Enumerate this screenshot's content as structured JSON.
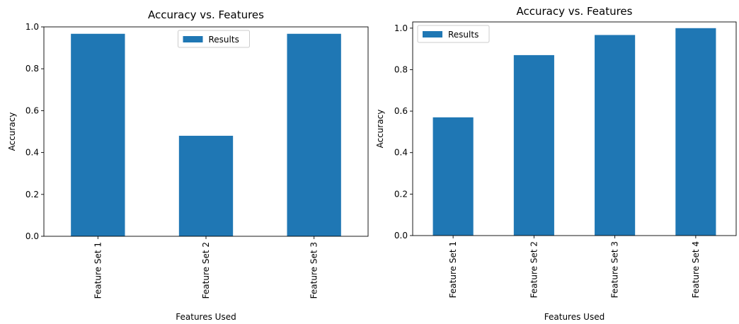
{
  "chart_data": [
    {
      "type": "bar",
      "title": "Accuracy vs. Features",
      "xlabel": "Features Used",
      "ylabel": "Accuracy",
      "categories": [
        "Feature Set 1",
        "Feature Set 2",
        "Feature Set 3"
      ],
      "series": [
        {
          "name": "Results",
          "values": [
            0.967,
            0.48,
            0.967
          ]
        }
      ],
      "ylim": [
        0,
        1.0
      ],
      "yticks": [
        0.0,
        0.2,
        0.4,
        0.6,
        0.8,
        1.0
      ],
      "ytick_labels": [
        "0.0",
        "0.2",
        "0.4",
        "0.6",
        "0.8",
        "1.0"
      ],
      "grid": false,
      "legend_position": "top-center",
      "bar_color": "#1f77b4"
    },
    {
      "type": "bar",
      "title": "Accuracy vs. Features",
      "xlabel": "Features Used",
      "ylabel": "Accuracy",
      "categories": [
        "Feature Set 1",
        "Feature Set 2",
        "Feature Set 3",
        "Feature Set 4"
      ],
      "series": [
        {
          "name": "Results",
          "values": [
            0.57,
            0.87,
            0.967,
            1.0
          ]
        }
      ],
      "ylim": [
        0,
        1.03
      ],
      "yticks": [
        0.0,
        0.2,
        0.4,
        0.6,
        0.8,
        1.0
      ],
      "ytick_labels": [
        "0.0",
        "0.2",
        "0.4",
        "0.6",
        "0.8",
        "1.0"
      ],
      "grid": false,
      "legend_position": "top-left",
      "bar_color": "#1f77b4"
    }
  ]
}
